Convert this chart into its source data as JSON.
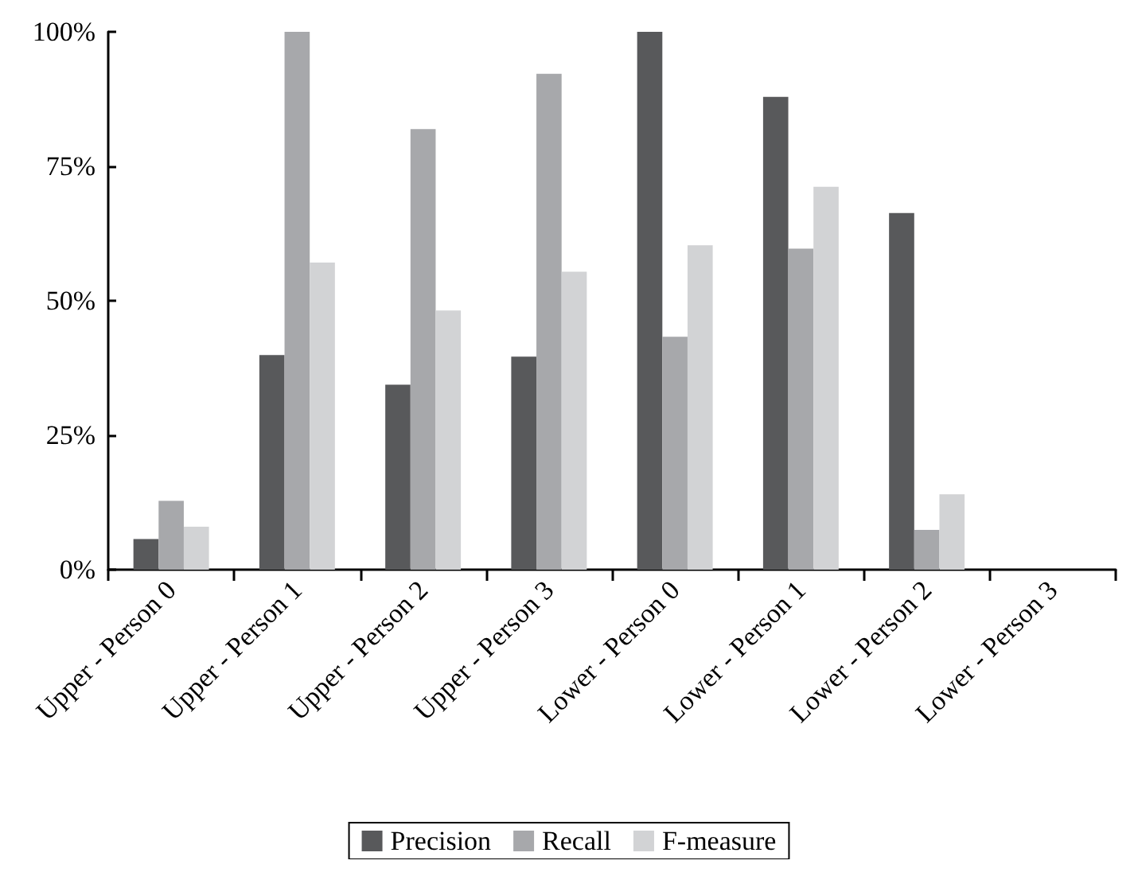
{
  "chart_data": {
    "type": "bar",
    "categories": [
      "Upper - Person 0",
      "Upper - Person 1",
      "Upper - Person 2",
      "Upper - Person 3",
      "Lower - Person 0",
      "Lower - Person 1",
      "Lower - Person 2",
      "Lower - Person 3"
    ],
    "series": [
      {
        "name": "Precision",
        "color": "#58595b",
        "values": [
          5.7,
          39.9,
          34.4,
          39.6,
          100,
          87.9,
          66.3,
          0
        ]
      },
      {
        "name": "Recall",
        "color": "#a7a8ab",
        "values": [
          12.8,
          100,
          81.9,
          92.2,
          43.3,
          59.7,
          7.4,
          0
        ]
      },
      {
        "name": "F-measure",
        "color": "#d2d3d5",
        "values": [
          8.0,
          57.1,
          48.2,
          55.4,
          60.3,
          71.2,
          14.0,
          0
        ]
      }
    ],
    "ylim": [
      0,
      100
    ],
    "yticks": [
      {
        "value": 0,
        "label": "0%"
      },
      {
        "value": 25,
        "label": "25%"
      },
      {
        "value": 50,
        "label": "50%"
      },
      {
        "value": 75,
        "label": "75%"
      },
      {
        "value": 100,
        "label": "100%"
      }
    ],
    "grid": false,
    "legend": "bottom"
  }
}
